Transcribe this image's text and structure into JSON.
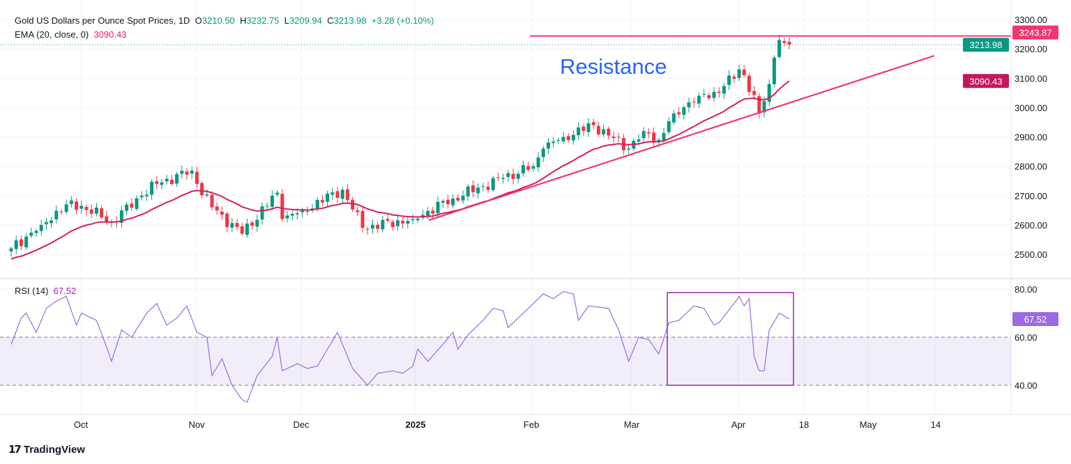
{
  "header": {
    "title": "Gold US Dollars per Ounce Spot Prices, 1D",
    "open_label": "O",
    "open": "3210.50",
    "high_label": "H",
    "high": "3232.75",
    "low_label": "L",
    "low": "3209.94",
    "close_label": "C",
    "close": "3213.98",
    "change": "+3.28 (+0.10%)",
    "ema_label": "EMA (20, close, 0)",
    "ema_value": "3090.43",
    "rsi_label": "RSI (14)",
    "rsi_value": "67.52"
  },
  "annotation": "Resistance",
  "badges": {
    "resistance": "3243.87",
    "last": "3213.98",
    "ema": "3090.43",
    "rsi": "67.52"
  },
  "branding": "TradingView",
  "colors": {
    "up": "#089981",
    "down": "#f23645",
    "ema": "#d81b60",
    "line": "#f23672",
    "rsi": "#9c6ade",
    "box": "#9c27b0",
    "text_blue": "#2962ff"
  },
  "chart_data": [
    {
      "type": "candlestick",
      "title": "Gold US Dollars per Ounce Spot Prices, 1D",
      "ylim": [
        2450,
        3330
      ],
      "yticks": [
        "3300.00",
        "3200.00",
        "3100.00",
        "3000.00",
        "2900.00",
        "2800.00",
        "2700.00",
        "2600.00",
        "2500.00"
      ],
      "ytick_values": [
        3300,
        3200,
        3100,
        3000,
        2900,
        2800,
        2700,
        2600,
        2500
      ],
      "xticks": [
        "Oct",
        "Nov",
        "Dec",
        "2025",
        "Feb",
        "Mar",
        "Apr",
        "18",
        "May",
        "14"
      ],
      "close_keypoints": [
        [
          0,
          2520
        ],
        [
          6,
          2600
        ],
        [
          11,
          2670
        ],
        [
          14,
          2665
        ],
        [
          20,
          2610
        ],
        [
          26,
          2700
        ],
        [
          29,
          2740
        ],
        [
          36,
          2785
        ],
        [
          37,
          2740
        ],
        [
          40,
          2660
        ],
        [
          46,
          2570
        ],
        [
          53,
          2710
        ],
        [
          54,
          2620
        ],
        [
          58,
          2650
        ],
        [
          66,
          2720
        ],
        [
          70,
          2590
        ],
        [
          80,
          2620
        ],
        [
          88,
          2690
        ],
        [
          98,
          2760
        ],
        [
          104,
          2800
        ],
        [
          106,
          2860
        ],
        [
          110,
          2900
        ],
        [
          116,
          2940
        ],
        [
          123,
          2860
        ],
        [
          126,
          2920
        ],
        [
          129,
          2890
        ],
        [
          132,
          2980
        ],
        [
          137,
          3040
        ],
        [
          141,
          3050
        ],
        [
          145,
          3130
        ],
        [
          146,
          3110
        ],
        [
          149,
          2980
        ],
        [
          151,
          3080
        ],
        [
          152,
          3170
        ],
        [
          153,
          3230
        ],
        [
          154,
          3220
        ],
        [
          155,
          3213.98
        ]
      ],
      "ema_period": 20,
      "resistance_level": 3243.87,
      "trendline": [
        [
          84,
          2615
        ],
        [
          185,
          3175
        ]
      ]
    },
    {
      "type": "line",
      "title": "RSI (14)",
      "ylim": [
        25,
        85
      ],
      "yticks": [
        "80.00",
        "60.00",
        "40.00"
      ],
      "ytick_values": [
        80,
        60,
        40
      ],
      "band": [
        40,
        60
      ],
      "rsi_keypoints": [
        [
          0,
          57
        ],
        [
          2,
          68
        ],
        [
          3,
          70
        ],
        [
          5,
          62
        ],
        [
          7,
          72
        ],
        [
          9,
          75
        ],
        [
          11,
          77
        ],
        [
          13,
          65
        ],
        [
          14,
          70
        ],
        [
          17,
          67
        ],
        [
          19,
          56
        ],
        [
          20,
          50
        ],
        [
          22,
          63
        ],
        [
          24,
          60
        ],
        [
          27,
          70
        ],
        [
          29,
          74
        ],
        [
          31,
          65
        ],
        [
          33,
          68
        ],
        [
          35,
          73
        ],
        [
          37,
          62
        ],
        [
          39,
          60
        ],
        [
          40,
          44
        ],
        [
          42,
          51
        ],
        [
          44,
          40
        ],
        [
          46,
          34
        ],
        [
          47,
          33
        ],
        [
          49,
          44
        ],
        [
          52,
          52
        ],
        [
          53,
          60
        ],
        [
          54,
          46
        ],
        [
          57,
          49
        ],
        [
          59,
          47
        ],
        [
          61,
          48
        ],
        [
          65,
          62
        ],
        [
          68,
          47
        ],
        [
          71,
          40
        ],
        [
          73,
          45
        ],
        [
          76,
          46
        ],
        [
          78,
          45
        ],
        [
          80,
          48
        ],
        [
          81,
          55
        ],
        [
          83,
          50
        ],
        [
          86,
          57
        ],
        [
          88,
          62
        ],
        [
          89,
          55
        ],
        [
          91,
          61
        ],
        [
          94,
          67
        ],
        [
          96,
          72
        ],
        [
          98,
          71
        ],
        [
          99,
          64
        ],
        [
          102,
          70
        ],
        [
          104,
          74
        ],
        [
          106,
          78
        ],
        [
          108,
          76
        ],
        [
          110,
          79
        ],
        [
          112,
          78
        ],
        [
          113,
          67
        ],
        [
          115,
          73
        ],
        [
          119,
          72
        ],
        [
          121,
          63
        ],
        [
          123,
          50
        ],
        [
          125,
          60
        ],
        [
          127,
          59
        ],
        [
          129,
          53
        ],
        [
          131,
          66
        ],
        [
          133,
          67
        ],
        [
          136,
          73
        ],
        [
          138,
          72
        ],
        [
          140,
          65
        ],
        [
          141,
          66
        ],
        [
          144,
          74
        ],
        [
          145,
          77
        ],
        [
          146,
          73
        ],
        [
          147,
          76
        ],
        [
          148,
          52
        ],
        [
          149,
          46
        ],
        [
          150,
          46
        ],
        [
          151,
          63
        ],
        [
          153,
          70
        ],
        [
          155,
          67.52
        ]
      ]
    }
  ]
}
